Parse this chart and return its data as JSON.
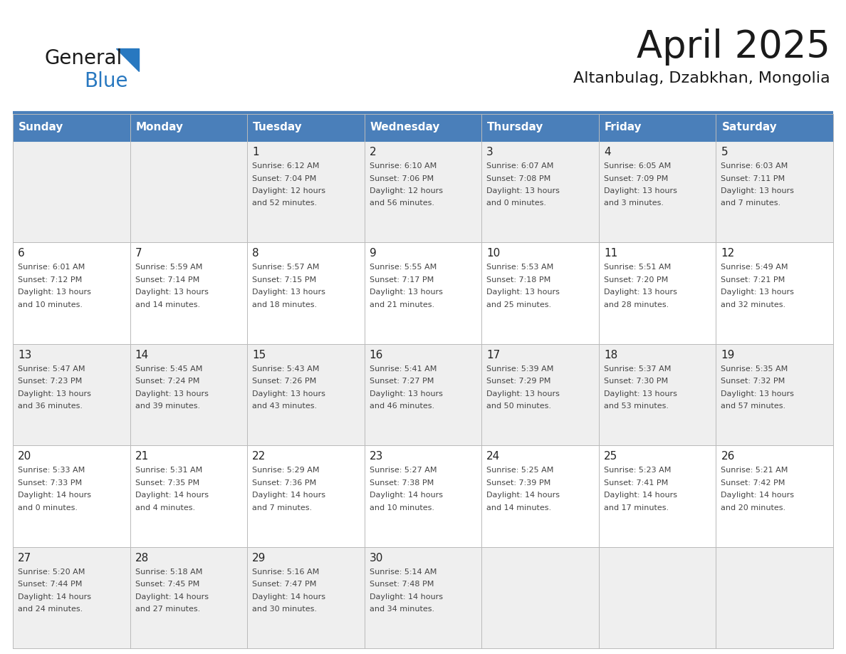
{
  "title": "April 2025",
  "subtitle": "Altanbulag, Dzabkhan, Mongolia",
  "header_bg": "#4a7fba",
  "header_text_color": "#ffffff",
  "row_bg_odd": "#efefef",
  "row_bg_even": "#ffffff",
  "text_color": "#333333",
  "border_color": "#bbbbbb",
  "blue_line_color": "#4a7fba",
  "days_of_week": [
    "Sunday",
    "Monday",
    "Tuesday",
    "Wednesday",
    "Thursday",
    "Friday",
    "Saturday"
  ],
  "logo_general_color": "#1a1a1a",
  "logo_blue_color": "#2878c0",
  "logo_triangle_color": "#2878c0",
  "weeks": [
    [
      {
        "day": "",
        "lines": []
      },
      {
        "day": "",
        "lines": []
      },
      {
        "day": "1",
        "lines": [
          "Sunrise: 6:12 AM",
          "Sunset: 7:04 PM",
          "Daylight: 12 hours",
          "and 52 minutes."
        ]
      },
      {
        "day": "2",
        "lines": [
          "Sunrise: 6:10 AM",
          "Sunset: 7:06 PM",
          "Daylight: 12 hours",
          "and 56 minutes."
        ]
      },
      {
        "day": "3",
        "lines": [
          "Sunrise: 6:07 AM",
          "Sunset: 7:08 PM",
          "Daylight: 13 hours",
          "and 0 minutes."
        ]
      },
      {
        "day": "4",
        "lines": [
          "Sunrise: 6:05 AM",
          "Sunset: 7:09 PM",
          "Daylight: 13 hours",
          "and 3 minutes."
        ]
      },
      {
        "day": "5",
        "lines": [
          "Sunrise: 6:03 AM",
          "Sunset: 7:11 PM",
          "Daylight: 13 hours",
          "and 7 minutes."
        ]
      }
    ],
    [
      {
        "day": "6",
        "lines": [
          "Sunrise: 6:01 AM",
          "Sunset: 7:12 PM",
          "Daylight: 13 hours",
          "and 10 minutes."
        ]
      },
      {
        "day": "7",
        "lines": [
          "Sunrise: 5:59 AM",
          "Sunset: 7:14 PM",
          "Daylight: 13 hours",
          "and 14 minutes."
        ]
      },
      {
        "day": "8",
        "lines": [
          "Sunrise: 5:57 AM",
          "Sunset: 7:15 PM",
          "Daylight: 13 hours",
          "and 18 minutes."
        ]
      },
      {
        "day": "9",
        "lines": [
          "Sunrise: 5:55 AM",
          "Sunset: 7:17 PM",
          "Daylight: 13 hours",
          "and 21 minutes."
        ]
      },
      {
        "day": "10",
        "lines": [
          "Sunrise: 5:53 AM",
          "Sunset: 7:18 PM",
          "Daylight: 13 hours",
          "and 25 minutes."
        ]
      },
      {
        "day": "11",
        "lines": [
          "Sunrise: 5:51 AM",
          "Sunset: 7:20 PM",
          "Daylight: 13 hours",
          "and 28 minutes."
        ]
      },
      {
        "day": "12",
        "lines": [
          "Sunrise: 5:49 AM",
          "Sunset: 7:21 PM",
          "Daylight: 13 hours",
          "and 32 minutes."
        ]
      }
    ],
    [
      {
        "day": "13",
        "lines": [
          "Sunrise: 5:47 AM",
          "Sunset: 7:23 PM",
          "Daylight: 13 hours",
          "and 36 minutes."
        ]
      },
      {
        "day": "14",
        "lines": [
          "Sunrise: 5:45 AM",
          "Sunset: 7:24 PM",
          "Daylight: 13 hours",
          "and 39 minutes."
        ]
      },
      {
        "day": "15",
        "lines": [
          "Sunrise: 5:43 AM",
          "Sunset: 7:26 PM",
          "Daylight: 13 hours",
          "and 43 minutes."
        ]
      },
      {
        "day": "16",
        "lines": [
          "Sunrise: 5:41 AM",
          "Sunset: 7:27 PM",
          "Daylight: 13 hours",
          "and 46 minutes."
        ]
      },
      {
        "day": "17",
        "lines": [
          "Sunrise: 5:39 AM",
          "Sunset: 7:29 PM",
          "Daylight: 13 hours",
          "and 50 minutes."
        ]
      },
      {
        "day": "18",
        "lines": [
          "Sunrise: 5:37 AM",
          "Sunset: 7:30 PM",
          "Daylight: 13 hours",
          "and 53 minutes."
        ]
      },
      {
        "day": "19",
        "lines": [
          "Sunrise: 5:35 AM",
          "Sunset: 7:32 PM",
          "Daylight: 13 hours",
          "and 57 minutes."
        ]
      }
    ],
    [
      {
        "day": "20",
        "lines": [
          "Sunrise: 5:33 AM",
          "Sunset: 7:33 PM",
          "Daylight: 14 hours",
          "and 0 minutes."
        ]
      },
      {
        "day": "21",
        "lines": [
          "Sunrise: 5:31 AM",
          "Sunset: 7:35 PM",
          "Daylight: 14 hours",
          "and 4 minutes."
        ]
      },
      {
        "day": "22",
        "lines": [
          "Sunrise: 5:29 AM",
          "Sunset: 7:36 PM",
          "Daylight: 14 hours",
          "and 7 minutes."
        ]
      },
      {
        "day": "23",
        "lines": [
          "Sunrise: 5:27 AM",
          "Sunset: 7:38 PM",
          "Daylight: 14 hours",
          "and 10 minutes."
        ]
      },
      {
        "day": "24",
        "lines": [
          "Sunrise: 5:25 AM",
          "Sunset: 7:39 PM",
          "Daylight: 14 hours",
          "and 14 minutes."
        ]
      },
      {
        "day": "25",
        "lines": [
          "Sunrise: 5:23 AM",
          "Sunset: 7:41 PM",
          "Daylight: 14 hours",
          "and 17 minutes."
        ]
      },
      {
        "day": "26",
        "lines": [
          "Sunrise: 5:21 AM",
          "Sunset: 7:42 PM",
          "Daylight: 14 hours",
          "and 20 minutes."
        ]
      }
    ],
    [
      {
        "day": "27",
        "lines": [
          "Sunrise: 5:20 AM",
          "Sunset: 7:44 PM",
          "Daylight: 14 hours",
          "and 24 minutes."
        ]
      },
      {
        "day": "28",
        "lines": [
          "Sunrise: 5:18 AM",
          "Sunset: 7:45 PM",
          "Daylight: 14 hours",
          "and 27 minutes."
        ]
      },
      {
        "day": "29",
        "lines": [
          "Sunrise: 5:16 AM",
          "Sunset: 7:47 PM",
          "Daylight: 14 hours",
          "and 30 minutes."
        ]
      },
      {
        "day": "30",
        "lines": [
          "Sunrise: 5:14 AM",
          "Sunset: 7:48 PM",
          "Daylight: 14 hours",
          "and 34 minutes."
        ]
      },
      {
        "day": "",
        "lines": []
      },
      {
        "day": "",
        "lines": []
      },
      {
        "day": "",
        "lines": []
      }
    ]
  ]
}
